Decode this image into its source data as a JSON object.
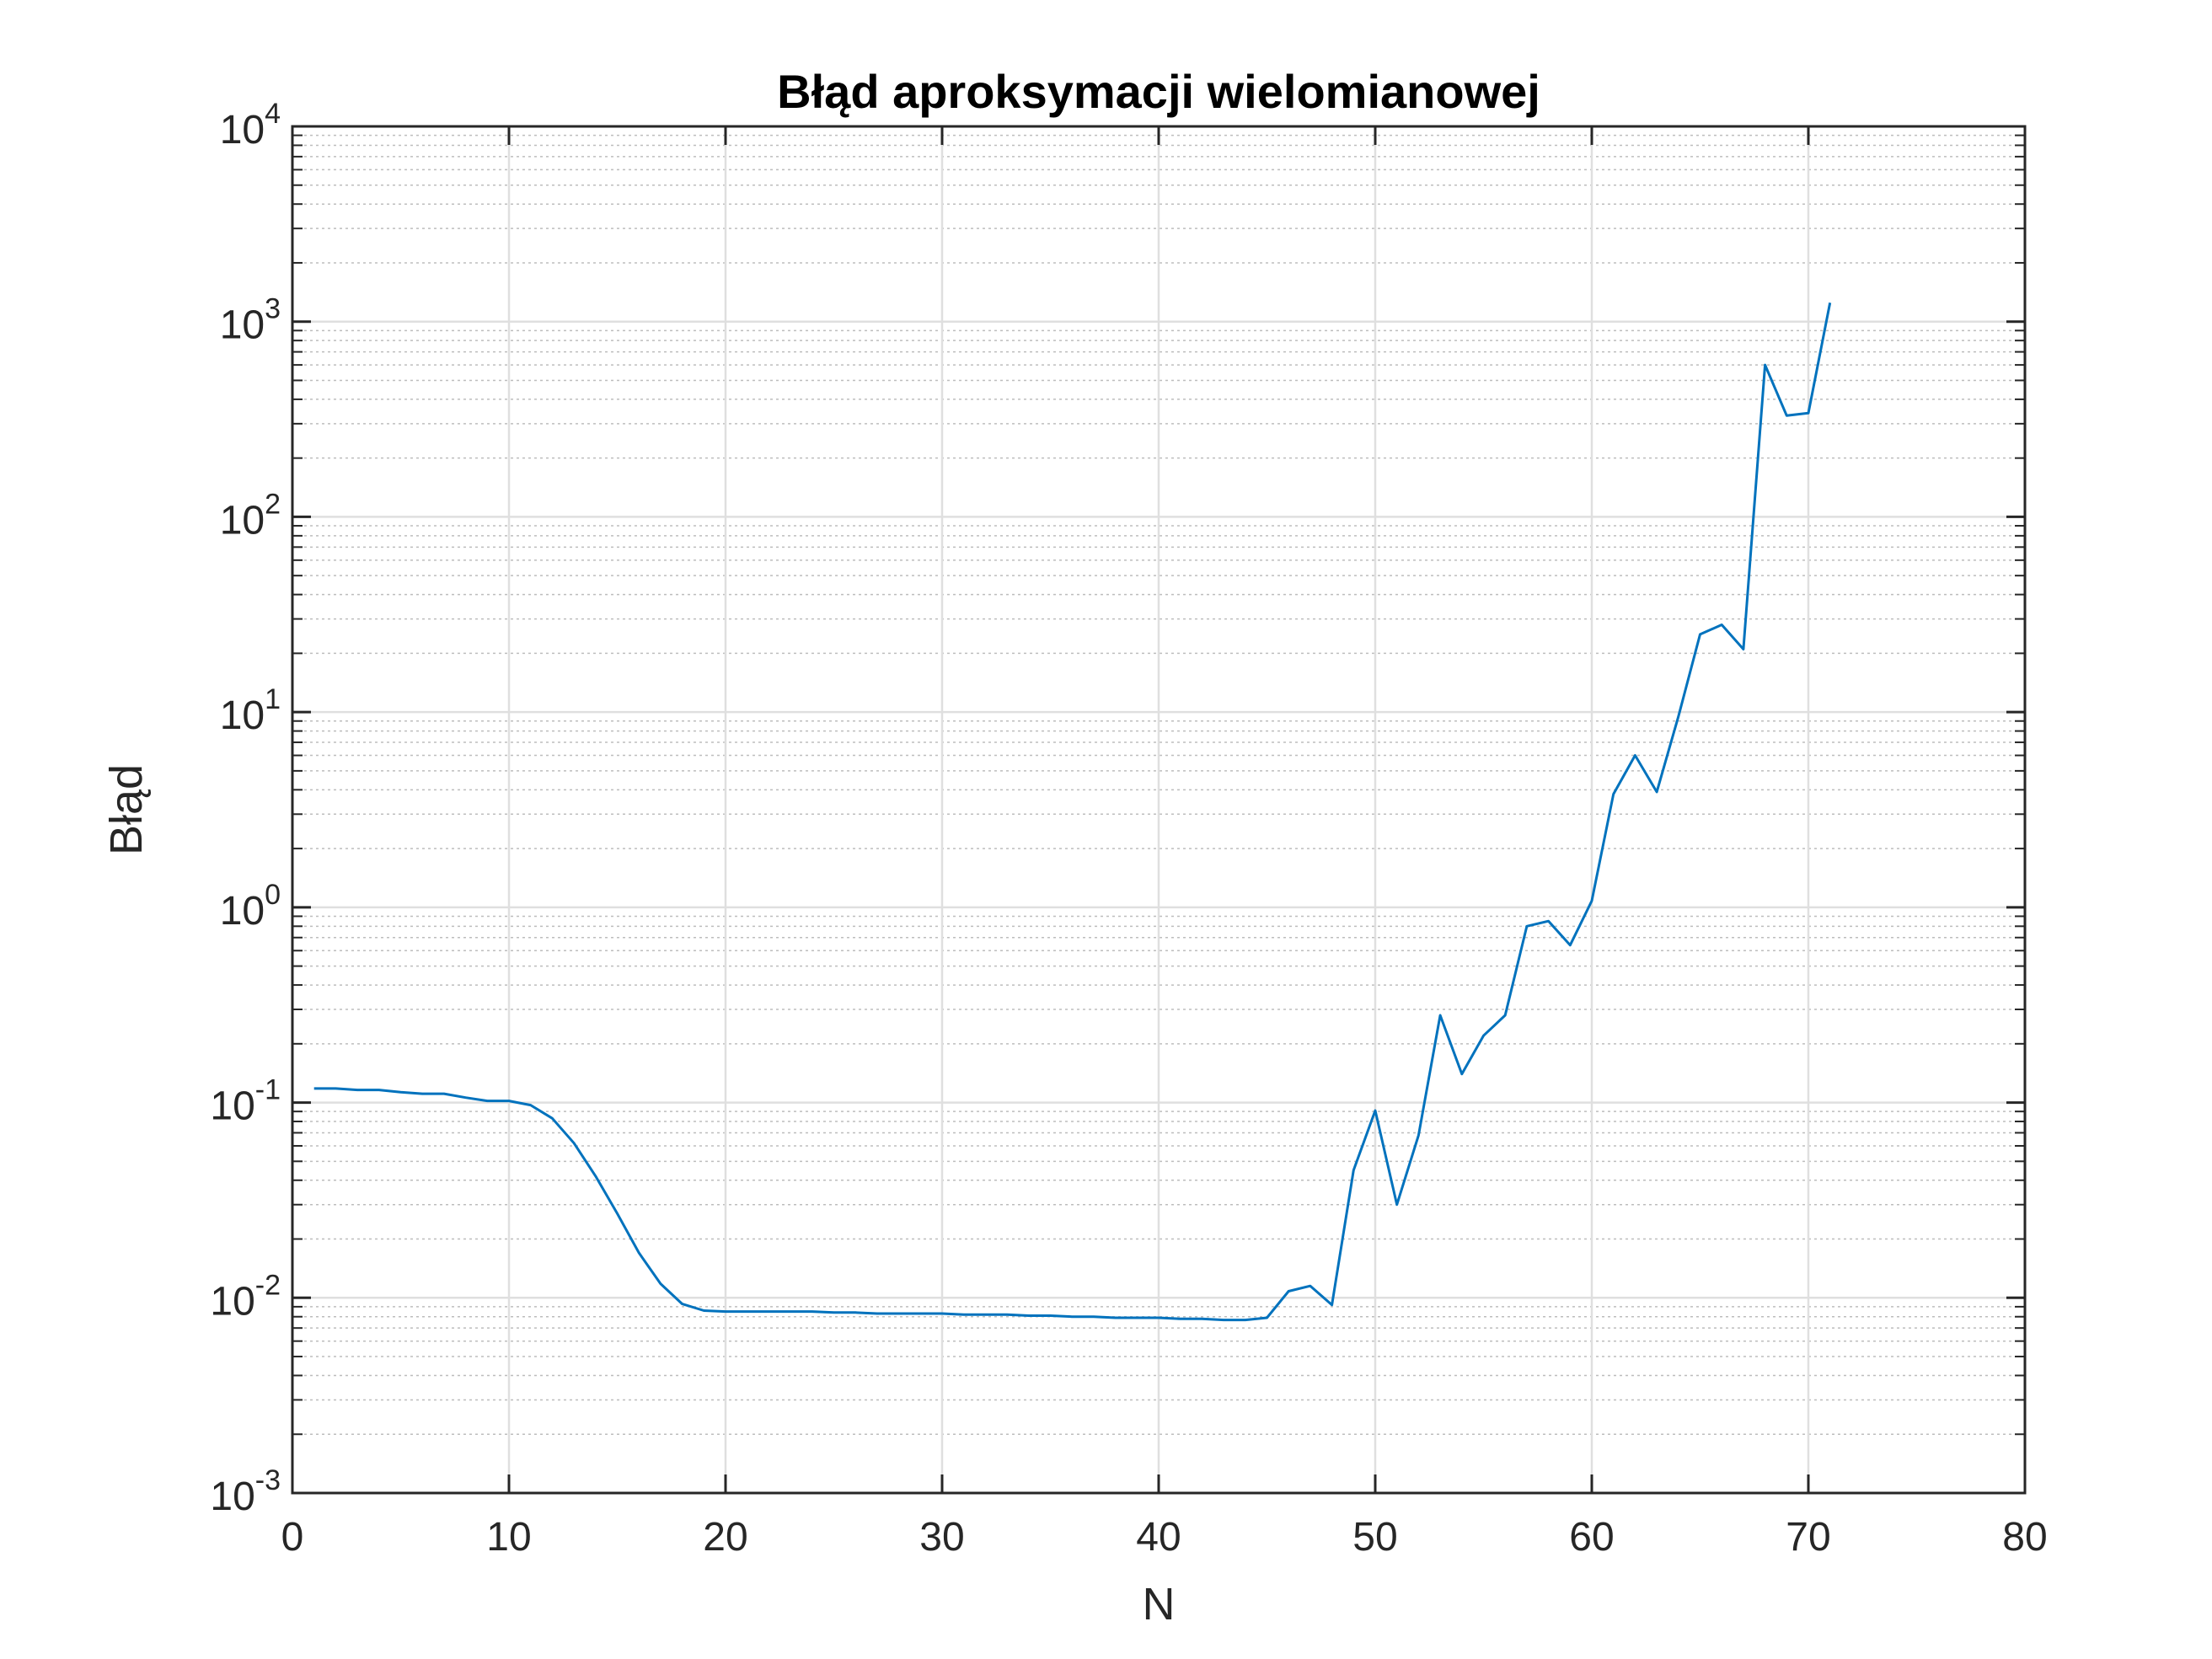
{
  "chart_data": {
    "type": "line",
    "title": "Błąd aproksymacji wielomianowej",
    "xlabel": "N",
    "ylabel": "Błąd",
    "xlim": [
      0,
      80
    ],
    "ylim": [
      0.001,
      10000
    ],
    "yscale": "log",
    "grid": true,
    "minor_grid": true,
    "x_ticks": [
      "0",
      "10",
      "20",
      "30",
      "40",
      "50",
      "60",
      "70",
      "80"
    ],
    "y_ticks": [
      {
        "base": "10",
        "exp": "-3"
      },
      {
        "base": "10",
        "exp": "-2"
      },
      {
        "base": "10",
        "exp": "-1"
      },
      {
        "base": "10",
        "exp": "0"
      },
      {
        "base": "10",
        "exp": "1"
      },
      {
        "base": "10",
        "exp": "2"
      },
      {
        "base": "10",
        "exp": "3"
      },
      {
        "base": "10",
        "exp": "4"
      }
    ],
    "series": [
      {
        "color": "#0072BD",
        "x": [
          1,
          2,
          3,
          4,
          5,
          6,
          7,
          8,
          9,
          10,
          11,
          12,
          13,
          14,
          15,
          16,
          17,
          18,
          19,
          20,
          21,
          22,
          23,
          24,
          25,
          26,
          27,
          28,
          29,
          30,
          31,
          32,
          33,
          34,
          35,
          36,
          37,
          38,
          39,
          40,
          41,
          42,
          43,
          44,
          45,
          46,
          47,
          48,
          49,
          50,
          51,
          52,
          53,
          54,
          55,
          56,
          57,
          58,
          59,
          60,
          61,
          62,
          63,
          64,
          65,
          66,
          67,
          68,
          69,
          70,
          71
        ],
        "y": [
          0.118,
          0.118,
          0.116,
          0.116,
          0.113,
          0.111,
          0.111,
          0.106,
          0.102,
          0.102,
          0.097,
          0.083,
          0.062,
          0.042,
          0.027,
          0.017,
          0.0118,
          0.0093,
          0.0086,
          0.0085,
          0.0085,
          0.0085,
          0.0085,
          0.0085,
          0.0084,
          0.0084,
          0.0083,
          0.0083,
          0.0083,
          0.0083,
          0.0082,
          0.0082,
          0.0082,
          0.0081,
          0.0081,
          0.008,
          0.008,
          0.0079,
          0.0079,
          0.0079,
          0.0078,
          0.0078,
          0.0077,
          0.0077,
          0.0079,
          0.0108,
          0.0115,
          0.0092,
          0.045,
          0.091,
          0.03,
          0.068,
          0.28,
          0.14,
          0.22,
          0.28,
          0.8,
          0.85,
          0.64,
          1.08,
          3.8,
          6.0,
          3.9,
          9.5,
          25,
          28,
          21,
          600,
          330,
          340,
          1250
        ]
      }
    ]
  }
}
